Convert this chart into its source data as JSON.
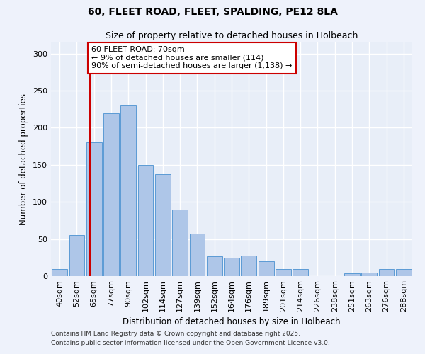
{
  "title1": "60, FLEET ROAD, FLEET, SPALDING, PE12 8LA",
  "title2": "Size of property relative to detached houses in Holbeach",
  "xlabel": "Distribution of detached houses by size in Holbeach",
  "ylabel": "Number of detached properties",
  "categories": [
    "40sqm",
    "52sqm",
    "65sqm",
    "77sqm",
    "90sqm",
    "102sqm",
    "114sqm",
    "127sqm",
    "139sqm",
    "152sqm",
    "164sqm",
    "176sqm",
    "189sqm",
    "201sqm",
    "214sqm",
    "226sqm",
    "238sqm",
    "251sqm",
    "263sqm",
    "276sqm",
    "288sqm"
  ],
  "values": [
    10,
    55,
    180,
    220,
    230,
    150,
    137,
    90,
    57,
    27,
    25,
    28,
    20,
    10,
    10,
    0,
    0,
    4,
    5,
    10,
    10
  ],
  "bar_color": "#aec6e8",
  "bar_edge_color": "#5b9bd5",
  "background_color": "#e8eef8",
  "grid_color": "#ffffff",
  "red_line_x": 1.77,
  "annotation_text": "60 FLEET ROAD: 70sqm\n← 9% of detached houses are smaller (114)\n90% of semi-detached houses are larger (1,138) →",
  "annotation_box_color": "#ffffff",
  "annotation_box_edge": "#cc0000",
  "ylim": [
    0,
    315
  ],
  "footnote1": "Contains HM Land Registry data © Crown copyright and database right 2025.",
  "footnote2": "Contains public sector information licensed under the Open Government Licence v3.0."
}
